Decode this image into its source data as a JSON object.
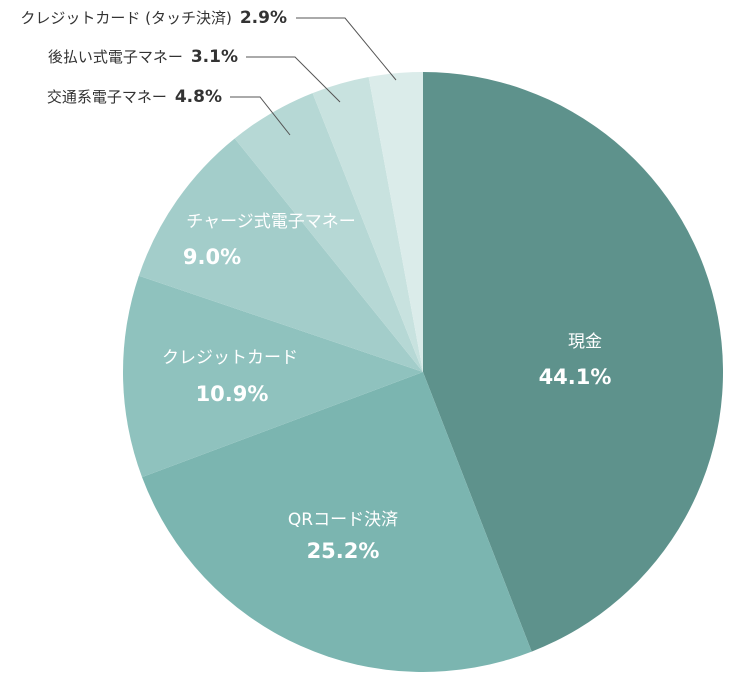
{
  "chart_data": {
    "type": "pie",
    "categories": [
      "現金",
      "QRコード決済",
      "クレジットカード",
      "チャージ式電子マネー",
      "交通系電子マネー",
      "後払い式電子マネー",
      "クレジットカード (タッチ決済)"
    ],
    "values": [
      44.1,
      25.2,
      10.9,
      9.0,
      4.8,
      3.1,
      2.9
    ],
    "value_labels": [
      "44.1%",
      "25.2%",
      "10.9%",
      "9.0%",
      "4.8%",
      "3.1%",
      "2.9%"
    ],
    "colors": [
      "#5e928c",
      "#7bb5b0",
      "#8fc2be",
      "#a3cdca",
      "#b6d8d5",
      "#c8e2df",
      "#dbecea"
    ]
  }
}
